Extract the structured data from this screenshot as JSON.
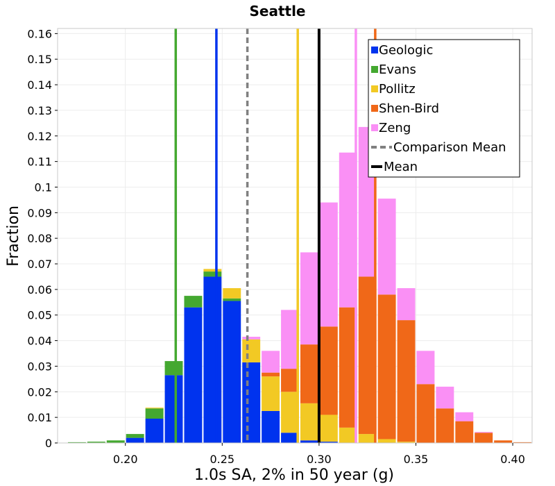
{
  "chart_data": {
    "type": "bar",
    "stacked": true,
    "title": "Seattle",
    "xlabel": "1.0s SA, 2% in 50 year (g)",
    "ylabel": "Fraction",
    "xlim": [
      0.165,
      0.41
    ],
    "ylim": [
      0,
      0.162
    ],
    "bin_width": 0.01,
    "x_ticks": [
      0.2,
      0.25,
      0.3,
      0.35,
      0.4
    ],
    "x_tick_labels": [
      "0.20",
      "0.25",
      "0.30",
      "0.35",
      "0.40"
    ],
    "y_ticks": [
      0,
      0.01,
      0.02,
      0.03,
      0.04,
      0.05,
      0.06,
      0.07,
      0.08,
      0.09,
      0.1,
      0.11,
      0.12,
      0.13,
      0.14,
      0.15,
      0.16
    ],
    "y_tick_labels": [
      "0",
      "0.01",
      "0.02",
      "0.03",
      "0.04",
      "0.05",
      "0.06",
      "0.07",
      "0.08",
      "0.09",
      "0.1",
      "0.11",
      "0.12",
      "0.13",
      "0.14",
      "0.15",
      "0.16"
    ],
    "grid": true,
    "legend_position": "top-right",
    "x": [
      0.175,
      0.185,
      0.195,
      0.205,
      0.215,
      0.225,
      0.235,
      0.245,
      0.255,
      0.265,
      0.275,
      0.285,
      0.295,
      0.305,
      0.315,
      0.325,
      0.335,
      0.345,
      0.355,
      0.365,
      0.375,
      0.385,
      0.395,
      0.405
    ],
    "series": [
      {
        "name": "Geologic",
        "color": "#0033ee",
        "values": [
          0,
          0,
          0,
          0.002,
          0.0095,
          0.0265,
          0.053,
          0.065,
          0.0555,
          0.0315,
          0.0125,
          0.004,
          0.001,
          0.0005,
          0,
          0,
          0,
          0,
          0,
          0,
          0,
          0,
          0,
          0
        ]
      },
      {
        "name": "Evans",
        "color": "#44a830",
        "values": [
          0.0003,
          0.0005,
          0.001,
          0.0015,
          0.004,
          0.0055,
          0.0045,
          0.002,
          0.001,
          0,
          0,
          0,
          0,
          0,
          0,
          0,
          0,
          0,
          0,
          0,
          0,
          0,
          0,
          0
        ]
      },
      {
        "name": "Pollitz",
        "color": "#f2c924",
        "values": [
          0,
          0,
          0,
          0,
          0.0003,
          0,
          0,
          0.001,
          0.004,
          0.009,
          0.0135,
          0.016,
          0.0145,
          0.0105,
          0.006,
          0.0035,
          0.0015,
          0.0005,
          0,
          0,
          0,
          0,
          0,
          0
        ]
      },
      {
        "name": "Shen-Bird",
        "color": "#f06818",
        "values": [
          0,
          0,
          0,
          0,
          0,
          0,
          0,
          0,
          0,
          0,
          0.0015,
          0.009,
          0.023,
          0.0345,
          0.047,
          0.0615,
          0.0565,
          0.0475,
          0.023,
          0.0135,
          0.0085,
          0.004,
          0.001,
          0.0003
        ]
      },
      {
        "name": "Zeng",
        "color": "#fa90f5",
        "values": [
          0,
          0,
          0,
          0,
          0,
          0,
          0,
          0,
          0,
          0.001,
          0.0085,
          0.023,
          0.036,
          0.0485,
          0.0605,
          0.0585,
          0.0375,
          0.0125,
          0.013,
          0.0085,
          0.0035,
          0.0003,
          0,
          0
        ]
      }
    ],
    "vertical_lines": [
      {
        "name": "Geologic",
        "x": 0.247,
        "color": "#0033ee",
        "style": "solid"
      },
      {
        "name": "Evans",
        "x": 0.226,
        "color": "#44a830",
        "style": "solid"
      },
      {
        "name": "Pollitz",
        "x": 0.289,
        "color": "#f2c924",
        "style": "solid"
      },
      {
        "name": "Shen-Bird",
        "x": 0.329,
        "color": "#f06818",
        "style": "solid"
      },
      {
        "name": "Zeng",
        "x": 0.319,
        "color": "#fa90f5",
        "style": "solid"
      },
      {
        "name": "Comparison Mean",
        "x": 0.263,
        "color": "#808080",
        "style": "dashed"
      },
      {
        "name": "Mean",
        "x": 0.3,
        "color": "#000000",
        "style": "solid"
      }
    ],
    "legend": [
      {
        "label": "Geologic",
        "color": "#0033ee",
        "kind": "box"
      },
      {
        "label": "Evans",
        "color": "#44a830",
        "kind": "box"
      },
      {
        "label": "Pollitz",
        "color": "#f2c924",
        "kind": "box"
      },
      {
        "label": "Shen-Bird",
        "color": "#f06818",
        "kind": "box"
      },
      {
        "label": "Zeng",
        "color": "#fa90f5",
        "kind": "box"
      },
      {
        "label": "Comparison Mean",
        "color": "#808080",
        "kind": "dashed"
      },
      {
        "label": "Mean",
        "color": "#000000",
        "kind": "line"
      }
    ]
  }
}
